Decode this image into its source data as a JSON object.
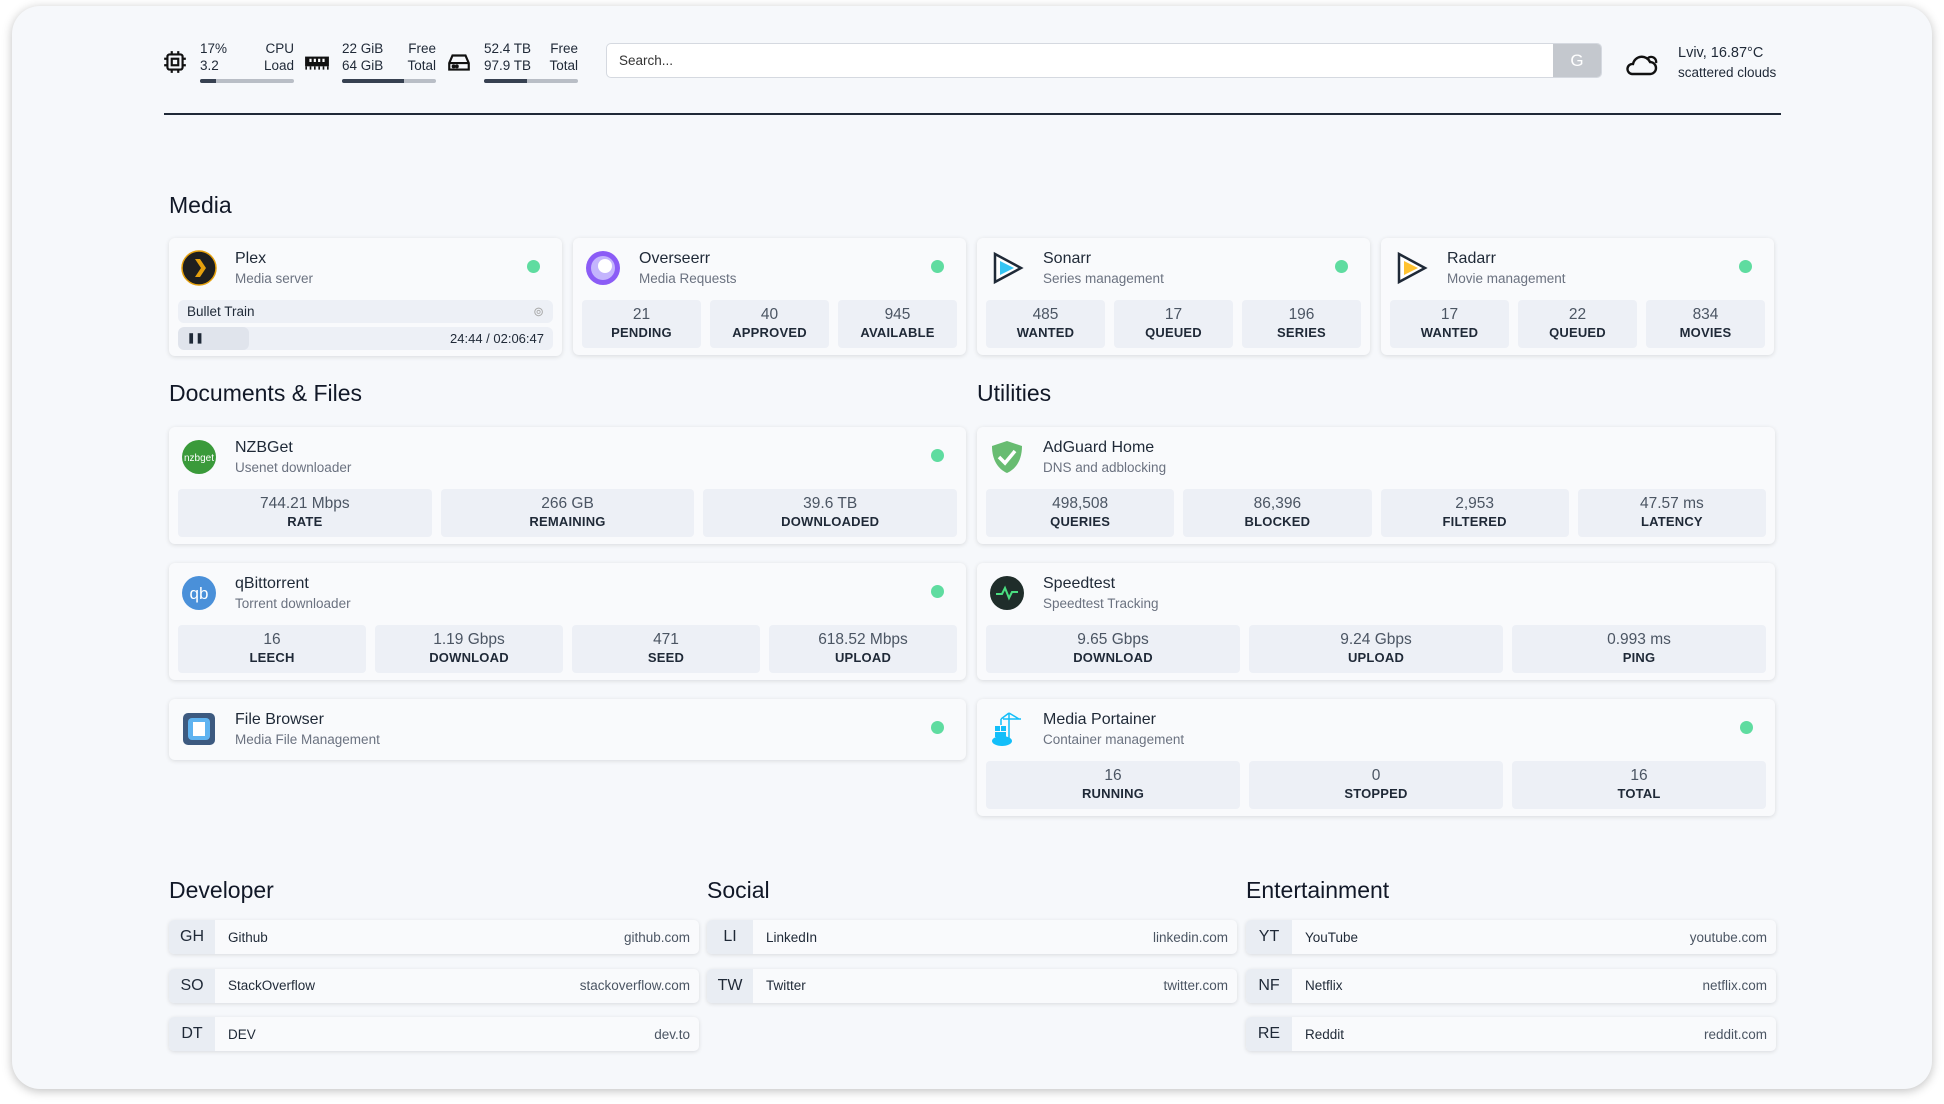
{
  "header": {
    "cpu": {
      "value": "17%",
      "label": "CPU",
      "load": "3.2",
      "load_label": "Load",
      "percent": 17
    },
    "ram": {
      "free": "22 GiB",
      "free_label": "Free",
      "total": "64 GiB",
      "total_label": "Total",
      "percent": 66
    },
    "disk": {
      "free": "52.4 TB",
      "free_label": "Free",
      "total": "97.9 TB",
      "total_label": "Total",
      "percent": 46
    },
    "search": {
      "placeholder": "Search...",
      "engine_label": "G"
    },
    "weather": {
      "location_temp": "Lviv, 16.87°C",
      "condition": "scattered clouds"
    }
  },
  "colors": {
    "status_ok": "#5fdca0",
    "stat_bg": "#edf0f6"
  },
  "sections": {
    "media": "Media",
    "docs": "Documents & Files",
    "utilities": "Utilities",
    "developer": "Developer",
    "social": "Social",
    "entertainment": "Entertainment"
  },
  "plex": {
    "title": "Plex",
    "subtitle": "Media server",
    "now_playing": "Bullet Train",
    "time": "24:44 / 02:06:47",
    "progress_percent": 19
  },
  "media_cards": [
    {
      "title": "Overseerr",
      "subtitle": "Media Requests",
      "icon": "overseerr-icon",
      "stats": [
        {
          "v": "21",
          "l": "PENDING"
        },
        {
          "v": "40",
          "l": "APPROVED"
        },
        {
          "v": "945",
          "l": "AVAILABLE"
        }
      ]
    },
    {
      "title": "Sonarr",
      "subtitle": "Series management",
      "icon": "sonarr-icon",
      "stats": [
        {
          "v": "485",
          "l": "WANTED"
        },
        {
          "v": "17",
          "l": "QUEUED"
        },
        {
          "v": "196",
          "l": "SERIES"
        }
      ]
    },
    {
      "title": "Radarr",
      "subtitle": "Movie management",
      "icon": "radarr-icon",
      "stats": [
        {
          "v": "17",
          "l": "WANTED"
        },
        {
          "v": "22",
          "l": "QUEUED"
        },
        {
          "v": "834",
          "l": "MOVIES"
        }
      ]
    }
  ],
  "docs_cards": [
    {
      "title": "NZBGet",
      "subtitle": "Usenet downloader",
      "icon": "nzbget-icon",
      "stats": [
        {
          "v": "744.21 Mbps",
          "l": "RATE"
        },
        {
          "v": "266 GB",
          "l": "REMAINING"
        },
        {
          "v": "39.6 TB",
          "l": "DOWNLOADED"
        }
      ]
    },
    {
      "title": "qBittorrent",
      "subtitle": "Torrent downloader",
      "icon": "qbittorrent-icon",
      "stats": [
        {
          "v": "16",
          "l": "LEECH"
        },
        {
          "v": "1.19 Gbps",
          "l": "DOWNLOAD"
        },
        {
          "v": "471",
          "l": "SEED"
        },
        {
          "v": "618.52 Mbps",
          "l": "UPLOAD"
        }
      ]
    },
    {
      "title": "File Browser",
      "subtitle": "Media File Management",
      "icon": "filebrowser-icon",
      "stats": []
    }
  ],
  "util_cards": [
    {
      "title": "AdGuard Home",
      "subtitle": "DNS and adblocking",
      "icon": "adguard-icon",
      "stats": [
        {
          "v": "498,508",
          "l": "QUERIES"
        },
        {
          "v": "86,396",
          "l": "BLOCKED"
        },
        {
          "v": "2,953",
          "l": "FILTERED"
        },
        {
          "v": "47.57 ms",
          "l": "LATENCY"
        }
      ]
    },
    {
      "title": "Speedtest",
      "subtitle": "Speedtest Tracking",
      "icon": "speedtest-icon",
      "stats": [
        {
          "v": "9.65 Gbps",
          "l": "DOWNLOAD"
        },
        {
          "v": "9.24 Gbps",
          "l": "UPLOAD"
        },
        {
          "v": "0.993 ms",
          "l": "PING"
        }
      ]
    },
    {
      "title": "Media Portainer",
      "subtitle": "Container management",
      "icon": "portainer-icon",
      "stats": [
        {
          "v": "16",
          "l": "RUNNING"
        },
        {
          "v": "0",
          "l": "STOPPED"
        },
        {
          "v": "16",
          "l": "TOTAL"
        }
      ]
    }
  ],
  "bookmarks": {
    "developer": [
      {
        "abbr": "GH",
        "name": "Github",
        "url": "github.com"
      },
      {
        "abbr": "SO",
        "name": "StackOverflow",
        "url": "stackoverflow.com"
      },
      {
        "abbr": "DT",
        "name": "DEV",
        "url": "dev.to"
      }
    ],
    "social": [
      {
        "abbr": "LI",
        "name": "LinkedIn",
        "url": "linkedin.com"
      },
      {
        "abbr": "TW",
        "name": "Twitter",
        "url": "twitter.com"
      }
    ],
    "entertainment": [
      {
        "abbr": "YT",
        "name": "YouTube",
        "url": "youtube.com"
      },
      {
        "abbr": "NF",
        "name": "Netflix",
        "url": "netflix.com"
      },
      {
        "abbr": "RE",
        "name": "Reddit",
        "url": "reddit.com"
      }
    ]
  }
}
